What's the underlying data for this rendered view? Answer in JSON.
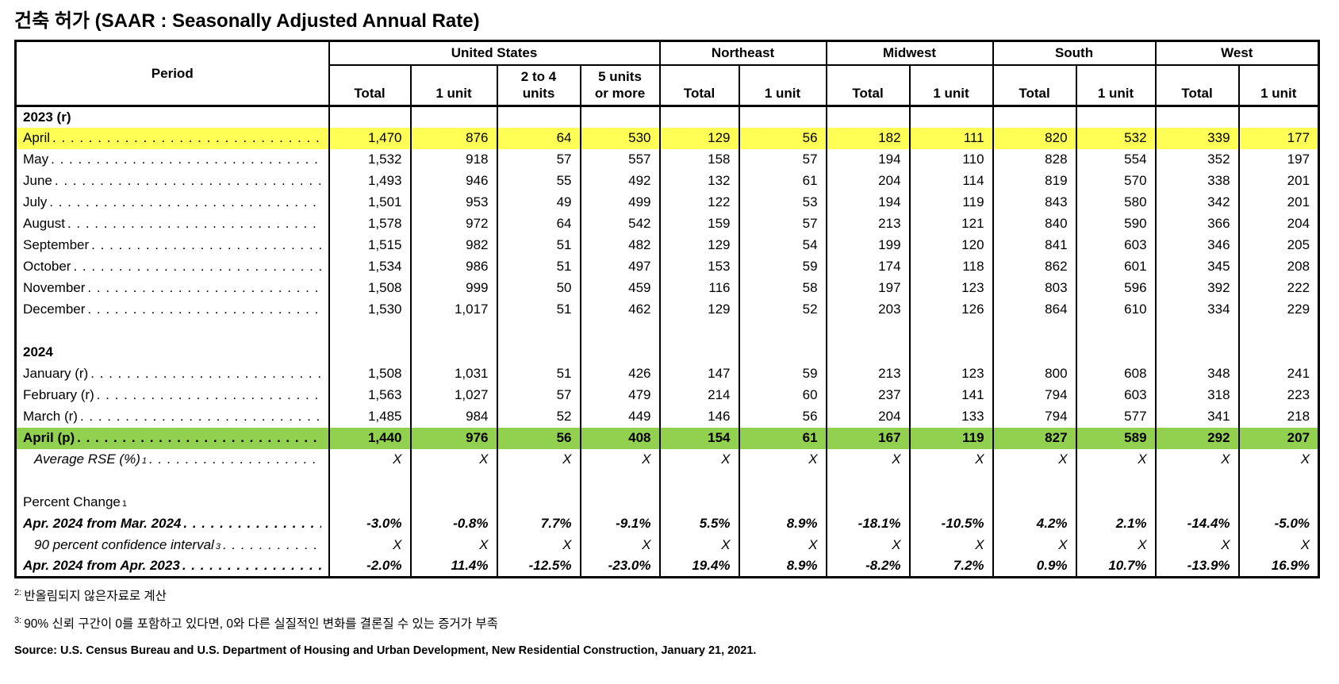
{
  "title": "건축 허가 (SAAR : Seasonally Adjusted Annual Rate)",
  "colors": {
    "highlight_yellow": "#FFFF56",
    "highlight_green": "#92D050"
  },
  "table": {
    "header": {
      "period": "Period",
      "groups": [
        "United States",
        "Northeast",
        "Midwest",
        "South",
        "West"
      ],
      "subcols": [
        {
          "l1": "Total"
        },
        {
          "l1": "1 unit"
        },
        {
          "l1": "2 to 4",
          "l2": "units"
        },
        {
          "l1": "5 units",
          "l2": "or more"
        },
        {
          "l1": "Total"
        },
        {
          "l1": "1 unit"
        },
        {
          "l1": "Total"
        },
        {
          "l1": "1 unit"
        },
        {
          "l1": "Total"
        },
        {
          "l1": "1 unit"
        },
        {
          "l1": "Total"
        },
        {
          "l1": "1 unit"
        }
      ]
    },
    "rows": [
      {
        "type": "section",
        "label": "2023 (r)"
      },
      {
        "type": "data",
        "label": "April",
        "highlight": "yellow",
        "values": [
          "1,470",
          "876",
          "64",
          "530",
          "129",
          "56",
          "182",
          "111",
          "820",
          "532",
          "339",
          "177"
        ]
      },
      {
        "type": "data",
        "label": "May",
        "values": [
          "1,532",
          "918",
          "57",
          "557",
          "158",
          "57",
          "194",
          "110",
          "828",
          "554",
          "352",
          "197"
        ]
      },
      {
        "type": "data",
        "label": "June",
        "values": [
          "1,493",
          "946",
          "55",
          "492",
          "132",
          "61",
          "204",
          "114",
          "819",
          "570",
          "338",
          "201"
        ]
      },
      {
        "type": "data",
        "label": "July",
        "values": [
          "1,501",
          "953",
          "49",
          "499",
          "122",
          "53",
          "194",
          "119",
          "843",
          "580",
          "342",
          "201"
        ]
      },
      {
        "type": "data",
        "label": "August",
        "values": [
          "1,578",
          "972",
          "64",
          "542",
          "159",
          "57",
          "213",
          "121",
          "840",
          "590",
          "366",
          "204"
        ]
      },
      {
        "type": "data",
        "label": "September",
        "values": [
          "1,515",
          "982",
          "51",
          "482",
          "129",
          "54",
          "199",
          "120",
          "841",
          "603",
          "346",
          "205"
        ]
      },
      {
        "type": "data",
        "label": "October",
        "values": [
          "1,534",
          "986",
          "51",
          "497",
          "153",
          "59",
          "174",
          "118",
          "862",
          "601",
          "345",
          "208"
        ]
      },
      {
        "type": "data",
        "label": "November",
        "values": [
          "1,508",
          "999",
          "50",
          "459",
          "116",
          "58",
          "197",
          "123",
          "803",
          "596",
          "392",
          "222"
        ]
      },
      {
        "type": "data",
        "label": "December",
        "values": [
          "1,530",
          "1,017",
          "51",
          "462",
          "129",
          "52",
          "203",
          "126",
          "864",
          "610",
          "334",
          "229"
        ]
      },
      {
        "type": "blank"
      },
      {
        "type": "section",
        "label": "2024"
      },
      {
        "type": "data",
        "label": "January (r)",
        "values": [
          "1,508",
          "1,031",
          "51",
          "426",
          "147",
          "59",
          "213",
          "123",
          "800",
          "608",
          "348",
          "241"
        ]
      },
      {
        "type": "data",
        "label": "February (r)",
        "values": [
          "1,563",
          "1,027",
          "57",
          "479",
          "214",
          "60",
          "237",
          "141",
          "794",
          "603",
          "318",
          "223"
        ]
      },
      {
        "type": "data",
        "label": "March (r)",
        "values": [
          "1,485",
          "984",
          "52",
          "449",
          "146",
          "56",
          "204",
          "133",
          "794",
          "577",
          "341",
          "218"
        ]
      },
      {
        "type": "data",
        "label": "April (p)",
        "highlight": "green",
        "bold": true,
        "values": [
          "1,440",
          "976",
          "56",
          "408",
          "154",
          "61",
          "167",
          "119",
          "827",
          "589",
          "292",
          "207"
        ]
      },
      {
        "type": "data",
        "label": "Average RSE (%)",
        "sup": "1",
        "italic": true,
        "indent": true,
        "values": [
          "X",
          "X",
          "X",
          "X",
          "X",
          "X",
          "X",
          "X",
          "X",
          "X",
          "X",
          "X"
        ]
      },
      {
        "type": "blank"
      },
      {
        "type": "label",
        "label": "Percent Change",
        "sup": "1"
      },
      {
        "type": "data",
        "label": "Apr. 2024 from Mar. 2024",
        "bold": true,
        "italic": true,
        "values": [
          "-3.0%",
          "-0.8%",
          "7.7%",
          "-9.1%",
          "5.5%",
          "8.9%",
          "-18.1%",
          "-10.5%",
          "4.2%",
          "2.1%",
          "-14.4%",
          "-5.0%"
        ]
      },
      {
        "type": "data",
        "label": "90 percent confidence interval",
        "sup": "3",
        "italic": true,
        "indent": true,
        "values": [
          "X",
          "X",
          "X",
          "X",
          "X",
          "X",
          "X",
          "X",
          "X",
          "X",
          "X",
          "X"
        ]
      },
      {
        "type": "data",
        "label": "Apr. 2024 from Apr. 2023",
        "bold": true,
        "italic": true,
        "values": [
          "-2.0%",
          "11.4%",
          "-12.5%",
          "-23.0%",
          "19.4%",
          "8.9%",
          "-8.2%",
          "7.2%",
          "0.9%",
          "10.7%",
          "-13.9%",
          "16.9%"
        ]
      }
    ]
  },
  "footnotes": [
    {
      "sup": "2:",
      "text": "반올림되지 않은자료로 계산"
    },
    {
      "sup": "3:",
      "text": "90% 신뢰 구간이 0를 포함하고 있다면, 0와 다른 실질적인 변화를 결론질 수 있는 증거가 부족"
    }
  ],
  "source": "Source: U.S. Census Bureau and U.S. Department of Housing and Urban Development, New Residential Construction, January 21, 2021."
}
